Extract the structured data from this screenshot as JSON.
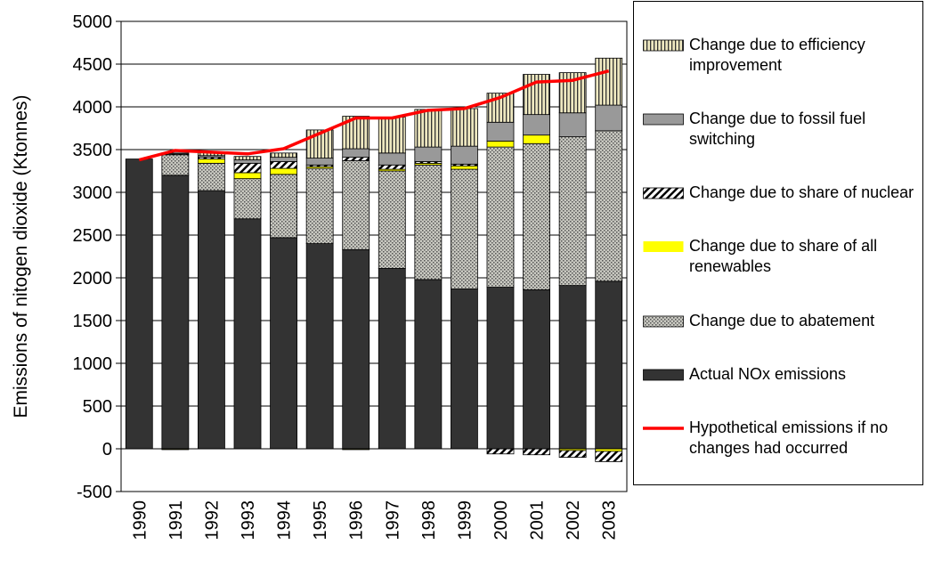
{
  "chart_data": {
    "type": "bar",
    "stacked": true,
    "y_label": "Emissions of nitogen dioxide (Ktonnes)",
    "categories": [
      "1990",
      "1991",
      "1992",
      "1993",
      "1994",
      "1995",
      "1996",
      "1997",
      "1998",
      "1999",
      "2000",
      "2001",
      "2002",
      "2003"
    ],
    "ylim": [
      -500,
      5000
    ],
    "yticks": [
      -500,
      0,
      500,
      1000,
      1500,
      2000,
      2500,
      3000,
      3500,
      4000,
      4500,
      5000
    ],
    "grid": true,
    "legend": "right",
    "series": [
      {
        "name": "Actual NOx emissions",
        "color": "#333333",
        "pattern": "solid",
        "values": [
          3390,
          3200,
          3020,
          2690,
          2470,
          2400,
          2330,
          2110,
          1980,
          1870,
          1890,
          1860,
          1910,
          1960
        ]
      },
      {
        "name": "Change due to abatement",
        "color": "#a8a8a0",
        "pattern": "dots",
        "values": [
          0,
          240,
          320,
          470,
          740,
          880,
          1040,
          1140,
          1340,
          1400,
          1640,
          1710,
          1740,
          1760
        ]
      },
      {
        "name": "Change due to share of all renewables",
        "color": "#ffff00",
        "pattern": "solid",
        "values": [
          0,
          -10,
          50,
          70,
          70,
          20,
          -10,
          20,
          20,
          40,
          70,
          100,
          -20,
          -30
        ]
      },
      {
        "name": "Change due to share of nuclear",
        "color": "#ffffff",
        "pattern": "diagonal",
        "values": [
          0,
          10,
          20,
          110,
          80,
          20,
          40,
          50,
          20,
          20,
          -60,
          -70,
          -80,
          -120
        ]
      },
      {
        "name": "Change due to fossil fuel switching",
        "color": "#999999",
        "pattern": "solid",
        "values": [
          0,
          10,
          20,
          40,
          50,
          80,
          100,
          140,
          170,
          210,
          220,
          240,
          280,
          300
        ]
      },
      {
        "name": "Change due to efficiency improvement",
        "color": "#e6dfb0",
        "pattern": "vertical",
        "values": [
          0,
          0,
          40,
          40,
          50,
          330,
          380,
          420,
          440,
          440,
          340,
          470,
          470,
          550
        ]
      },
      {
        "name": "Hypothetical emissions if no changes had occurred",
        "type": "line",
        "color": "#ff0000",
        "values": [
          3380,
          3490,
          3470,
          3450,
          3510,
          3690,
          3870,
          3870,
          3960,
          3980,
          4110,
          4290,
          4310,
          4420
        ]
      }
    ]
  }
}
